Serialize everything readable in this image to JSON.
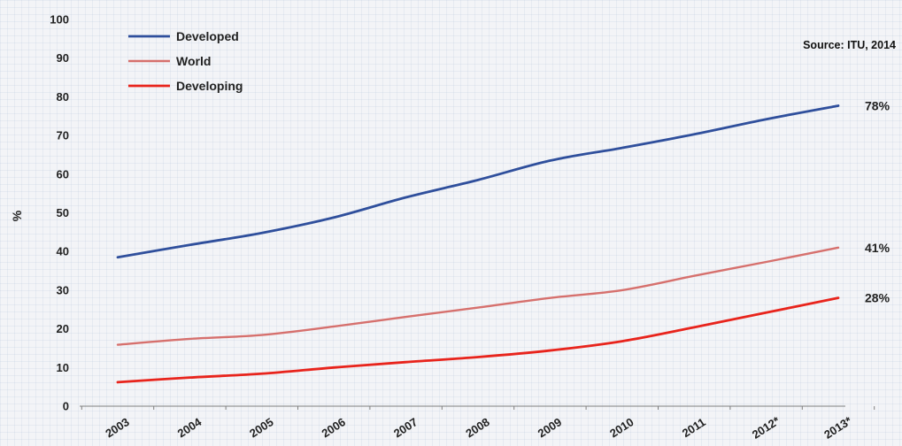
{
  "chart_data": {
    "type": "line",
    "title": "",
    "xlabel": "",
    "ylabel": "%",
    "ylim": [
      0,
      100
    ],
    "yticks": [
      0,
      10,
      20,
      30,
      40,
      50,
      60,
      70,
      80,
      90,
      100
    ],
    "categories": [
      "2003",
      "2004",
      "2005",
      "2006",
      "2007",
      "2008",
      "2009",
      "2010",
      "2011",
      "2012*",
      "2013*"
    ],
    "series": [
      {
        "name": "Developed",
        "color": "#2f4f9c",
        "values": [
          38.5,
          41.7,
          44.8,
          48.8,
          54.0,
          58.5,
          63.5,
          66.8,
          70.3,
          74.2,
          77.7
        ],
        "end_label": "78%"
      },
      {
        "name": "World",
        "color": "#d6706d",
        "values": [
          15.9,
          17.4,
          18.4,
          20.6,
          23.1,
          25.5,
          28.0,
          30.0,
          33.7,
          37.3,
          41.0
        ],
        "end_label": "41%"
      },
      {
        "name": "Developing",
        "color": "#e8241c",
        "values": [
          6.2,
          7.4,
          8.4,
          10.0,
          11.4,
          12.7,
          14.4,
          16.8,
          20.4,
          24.2,
          28.0
        ],
        "end_label": "28%"
      }
    ],
    "legend_position": "top-left",
    "grid": false,
    "source": "Source: ITU, 2014"
  }
}
